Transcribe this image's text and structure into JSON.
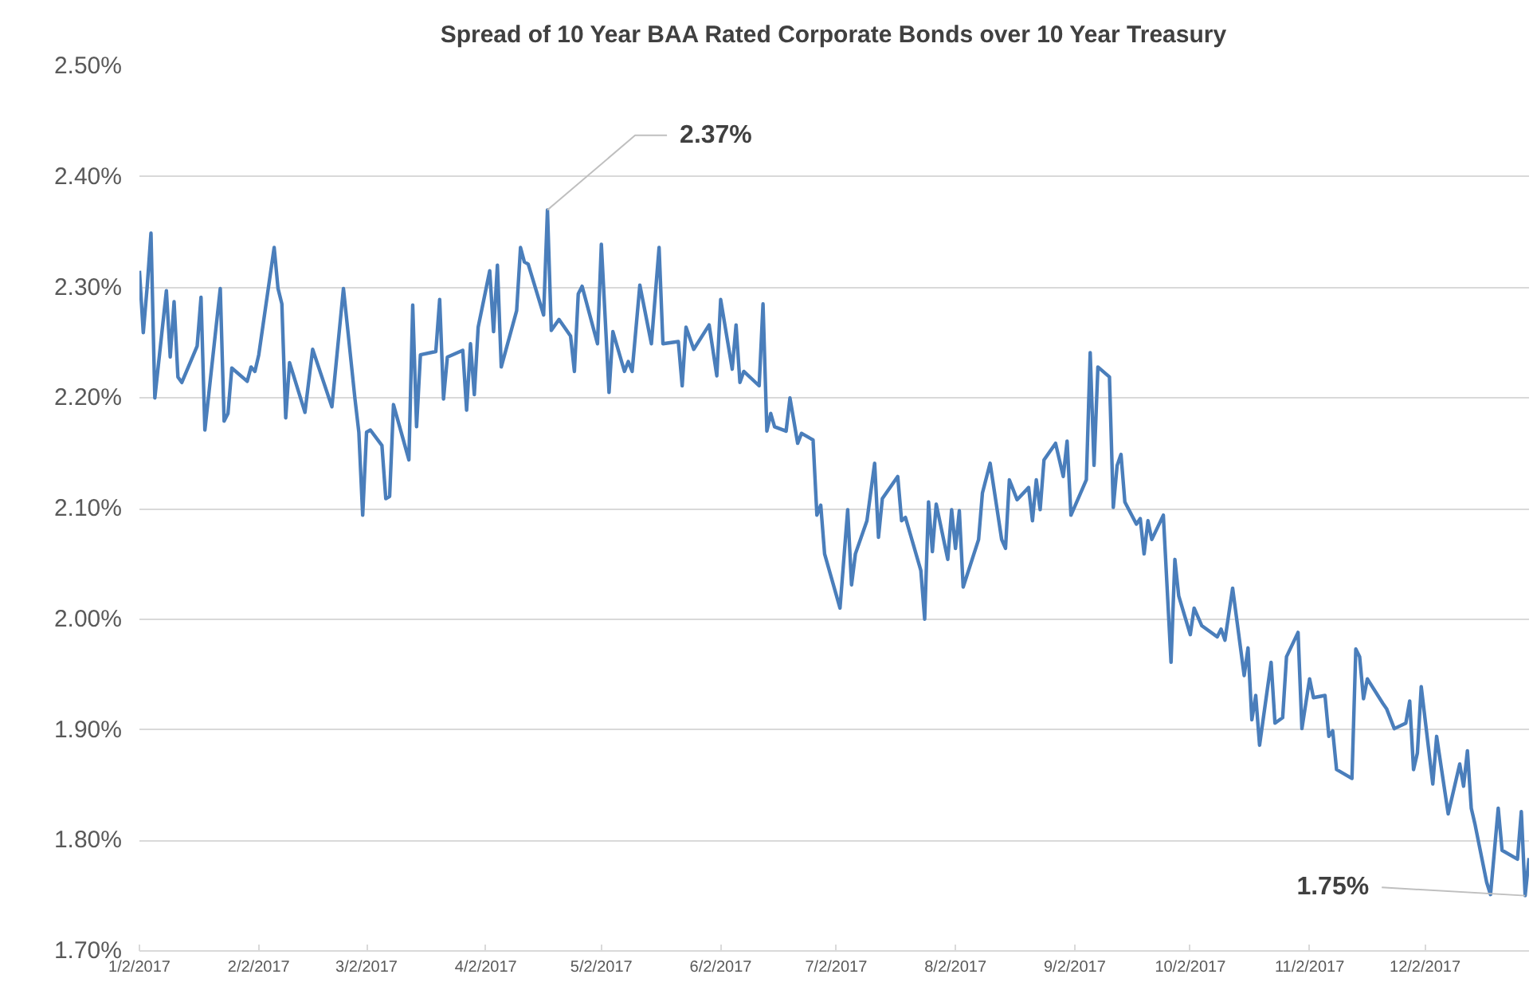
{
  "chart_data": {
    "type": "line",
    "title": "Spread of 10 Year BAA Rated Corporate Bonds over 10 Year Treasury",
    "x": [
      "2017-01-02",
      "2017-01-03",
      "2017-01-04",
      "2017-01-05",
      "2017-01-06",
      "2017-01-09",
      "2017-01-10",
      "2017-01-11",
      "2017-01-12",
      "2017-01-13",
      "2017-01-17",
      "2017-01-18",
      "2017-01-19",
      "2017-01-23",
      "2017-01-24",
      "2017-01-25",
      "2017-01-26",
      "2017-01-30",
      "2017-01-31",
      "2017-02-01",
      "2017-02-02",
      "2017-02-06",
      "2017-02-07",
      "2017-02-08",
      "2017-02-09",
      "2017-02-10",
      "2017-02-14",
      "2017-02-16",
      "2017-02-21",
      "2017-02-24",
      "2017-02-27",
      "2017-02-28",
      "2017-03-01",
      "2017-03-02",
      "2017-03-03",
      "2017-03-06",
      "2017-03-07",
      "2017-03-08",
      "2017-03-09",
      "2017-03-13",
      "2017-03-14",
      "2017-03-15",
      "2017-03-16",
      "2017-03-20",
      "2017-03-21",
      "2017-03-22",
      "2017-03-23",
      "2017-03-27",
      "2017-03-28",
      "2017-03-29",
      "2017-03-30",
      "2017-03-31",
      "2017-04-03",
      "2017-04-04",
      "2017-04-05",
      "2017-04-06",
      "2017-04-10",
      "2017-04-11",
      "2017-04-12",
      "2017-04-13",
      "2017-04-17",
      "2017-04-18",
      "2017-04-19",
      "2017-04-21",
      "2017-04-24",
      "2017-04-25",
      "2017-04-26",
      "2017-04-27",
      "2017-05-01",
      "2017-05-02",
      "2017-05-04",
      "2017-05-05",
      "2017-05-08",
      "2017-05-09",
      "2017-05-10",
      "2017-05-12",
      "2017-05-15",
      "2017-05-17",
      "2017-05-18",
      "2017-05-22",
      "2017-05-23",
      "2017-05-24",
      "2017-05-26",
      "2017-05-30",
      "2017-06-01",
      "2017-06-02",
      "2017-06-05",
      "2017-06-06",
      "2017-06-07",
      "2017-06-08",
      "2017-06-12",
      "2017-06-13",
      "2017-06-14",
      "2017-06-15",
      "2017-06-16",
      "2017-06-19",
      "2017-06-20",
      "2017-06-22",
      "2017-06-23",
      "2017-06-26",
      "2017-06-27",
      "2017-06-28",
      "2017-06-29",
      "2017-07-03",
      "2017-07-05",
      "2017-07-06",
      "2017-07-07",
      "2017-07-10",
      "2017-07-12",
      "2017-07-13",
      "2017-07-14",
      "2017-07-18",
      "2017-07-19",
      "2017-07-20",
      "2017-07-24",
      "2017-07-25",
      "2017-07-26",
      "2017-07-27",
      "2017-07-28",
      "2017-07-31",
      "2017-08-01",
      "2017-08-02",
      "2017-08-03",
      "2017-08-04",
      "2017-08-08",
      "2017-08-09",
      "2017-08-11",
      "2017-08-14",
      "2017-08-15",
      "2017-08-16",
      "2017-08-18",
      "2017-08-21",
      "2017-08-22",
      "2017-08-23",
      "2017-08-24",
      "2017-08-25",
      "2017-08-28",
      "2017-08-30",
      "2017-08-31",
      "2017-09-01",
      "2017-09-05",
      "2017-09-06",
      "2017-09-07",
      "2017-09-08",
      "2017-09-11",
      "2017-09-12",
      "2017-09-13",
      "2017-09-14",
      "2017-09-15",
      "2017-09-18",
      "2017-09-19",
      "2017-09-20",
      "2017-09-21",
      "2017-09-22",
      "2017-09-25",
      "2017-09-27",
      "2017-09-28",
      "2017-09-29",
      "2017-10-02",
      "2017-10-03",
      "2017-10-05",
      "2017-10-09",
      "2017-10-10",
      "2017-10-11",
      "2017-10-13",
      "2017-10-16",
      "2017-10-17",
      "2017-10-18",
      "2017-10-19",
      "2017-10-20",
      "2017-10-23",
      "2017-10-24",
      "2017-10-26",
      "2017-10-27",
      "2017-10-30",
      "2017-10-31",
      "2017-11-02",
      "2017-11-03",
      "2017-11-06",
      "2017-11-07",
      "2017-11-08",
      "2017-11-09",
      "2017-11-13",
      "2017-11-14",
      "2017-11-15",
      "2017-11-16",
      "2017-11-17",
      "2017-11-21",
      "2017-11-22",
      "2017-11-24",
      "2017-11-27",
      "2017-11-28",
      "2017-11-29",
      "2017-11-30",
      "2017-12-01",
      "2017-12-04",
      "2017-12-05",
      "2017-12-08",
      "2017-12-11",
      "2017-12-12",
      "2017-12-13",
      "2017-12-14",
      "2017-12-15",
      "2017-12-18",
      "2017-12-19",
      "2017-12-21",
      "2017-12-22",
      "2017-12-26",
      "2017-12-27",
      "2017-12-28",
      "2017-12-29"
    ],
    "series": [
      {
        "color": "#4a7ebb",
        "values": [
          2.315,
          2.259,
          2.3,
          2.349,
          2.2,
          2.297,
          2.237,
          2.287,
          2.219,
          2.214,
          2.247,
          2.291,
          2.171,
          2.299,
          2.179,
          2.186,
          2.227,
          2.215,
          2.228,
          2.224,
          2.239,
          2.336,
          2.299,
          2.285,
          2.182,
          2.232,
          2.187,
          2.244,
          2.192,
          2.299,
          2.199,
          2.169,
          2.094,
          2.169,
          2.171,
          2.157,
          2.109,
          2.111,
          2.194,
          2.144,
          2.284,
          2.174,
          2.239,
          2.242,
          2.289,
          2.199,
          2.237,
          2.243,
          2.189,
          2.249,
          2.203,
          2.264,
          2.315,
          2.26,
          2.32,
          2.228,
          2.279,
          2.336,
          2.323,
          2.321,
          2.275,
          2.37,
          2.261,
          2.271,
          2.256,
          2.224,
          2.294,
          2.301,
          2.249,
          2.339,
          2.205,
          2.26,
          2.224,
          2.233,
          2.224,
          2.302,
          2.249,
          2.336,
          2.249,
          2.251,
          2.211,
          2.264,
          2.244,
          2.266,
          2.22,
          2.289,
          2.226,
          2.266,
          2.214,
          2.224,
          2.211,
          2.285,
          2.17,
          2.186,
          2.174,
          2.17,
          2.2,
          2.159,
          2.168,
          2.162,
          2.094,
          2.103,
          2.059,
          2.01,
          2.099,
          2.031,
          2.059,
          2.089,
          2.141,
          2.074,
          2.109,
          2.129,
          2.089,
          2.092,
          2.044,
          2.0,
          2.106,
          2.061,
          2.104,
          2.054,
          2.099,
          2.064,
          2.098,
          2.029,
          2.072,
          2.114,
          2.141,
          2.072,
          2.064,
          2.126,
          2.108,
          2.119,
          2.089,
          2.126,
          2.099,
          2.144,
          2.159,
          2.129,
          2.161,
          2.094,
          2.126,
          2.241,
          2.139,
          2.228,
          2.219,
          2.101,
          2.139,
          2.149,
          2.106,
          2.086,
          2.091,
          2.059,
          2.089,
          2.072,
          2.094,
          1.961,
          2.054,
          2.021,
          1.986,
          2.01,
          1.994,
          1.984,
          1.991,
          1.981,
          2.028,
          1.949,
          1.974,
          1.909,
          1.931,
          1.886,
          1.961,
          1.906,
          1.911,
          1.966,
          1.988,
          1.901,
          1.946,
          1.929,
          1.931,
          1.894,
          1.899,
          1.864,
          1.856,
          1.973,
          1.966,
          1.928,
          1.946,
          1.924,
          1.919,
          1.901,
          1.906,
          1.926,
          1.864,
          1.879,
          1.939,
          1.851,
          1.894,
          1.824,
          1.869,
          1.849,
          1.881,
          1.829,
          1.814,
          1.762,
          1.751,
          1.829,
          1.791,
          1.783,
          1.826,
          1.75,
          1.784
        ]
      }
    ],
    "xlim": [
      "2017-01-02",
      "2017-12-29"
    ],
    "xticks": [
      {
        "value": "2017-01-02",
        "label": "1/2/2017"
      },
      {
        "value": "2017-02-02",
        "label": "2/2/2017"
      },
      {
        "value": "2017-03-02",
        "label": "3/2/2017"
      },
      {
        "value": "2017-04-02",
        "label": "4/2/2017"
      },
      {
        "value": "2017-05-02",
        "label": "5/2/2017"
      },
      {
        "value": "2017-06-02",
        "label": "6/2/2017"
      },
      {
        "value": "2017-07-02",
        "label": "7/2/2017"
      },
      {
        "value": "2017-08-02",
        "label": "8/2/2017"
      },
      {
        "value": "2017-09-02",
        "label": "9/2/2017"
      },
      {
        "value": "2017-10-02",
        "label": "10/2/2017"
      },
      {
        "value": "2017-11-02",
        "label": "11/2/2017"
      },
      {
        "value": "2017-12-02",
        "label": "12/2/2017"
      }
    ],
    "ylim": [
      1.7,
      2.5
    ],
    "yticks": [
      {
        "value": 1.7,
        "label": "1.70%"
      },
      {
        "value": 1.8,
        "label": "1.80%"
      },
      {
        "value": 1.9,
        "label": "1.90%"
      },
      {
        "value": 2.0,
        "label": "2.00%"
      },
      {
        "value": 2.1,
        "label": "2.10%"
      },
      {
        "value": 2.2,
        "label": "2.20%"
      },
      {
        "value": 2.3,
        "label": "2.30%"
      },
      {
        "value": 2.4,
        "label": "2.40%"
      },
      {
        "value": 2.5,
        "label": "2.50%"
      }
    ],
    "grid": "y",
    "line_style": "solid",
    "marker": "none",
    "annotations": [
      {
        "text": "2.37%",
        "x": "2017-04-18",
        "y": 2.37
      },
      {
        "text": "1.75%",
        "x": "2017-12-28",
        "y": 1.75
      }
    ]
  }
}
